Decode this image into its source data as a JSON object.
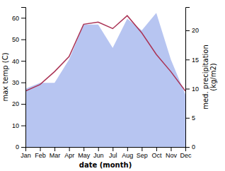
{
  "chart_data": {
    "type": "line",
    "categories": [
      "Jan",
      "Feb",
      "Mar",
      "Apr",
      "May",
      "Jun",
      "Jul",
      "Aug",
      "Sep",
      "Oct",
      "Nov",
      "Dec"
    ],
    "series": [
      {
        "type": "area",
        "axis": "y2",
        "color": "#aabbee",
        "values": [
          10,
          11,
          11,
          15,
          21,
          21,
          17,
          22,
          20,
          23,
          15,
          9
        ]
      },
      {
        "type": "line",
        "color": "#aa3355",
        "values": [
          26,
          29,
          35,
          42,
          57,
          58,
          55,
          61,
          53,
          43,
          35,
          26
        ]
      }
    ],
    "x_label": "date (month)",
    "y_label": "max temp (C)",
    "y2_label": "med. precipitation\n(kg/m2)",
    "ylim": [
      0,
      65
    ],
    "yticks": [
      0,
      10,
      20,
      30,
      40,
      50,
      60
    ],
    "y2lim": [
      0,
      24
    ],
    "y2ticks": [
      0,
      5,
      10,
      15,
      20
    ],
    "grid": false
  }
}
